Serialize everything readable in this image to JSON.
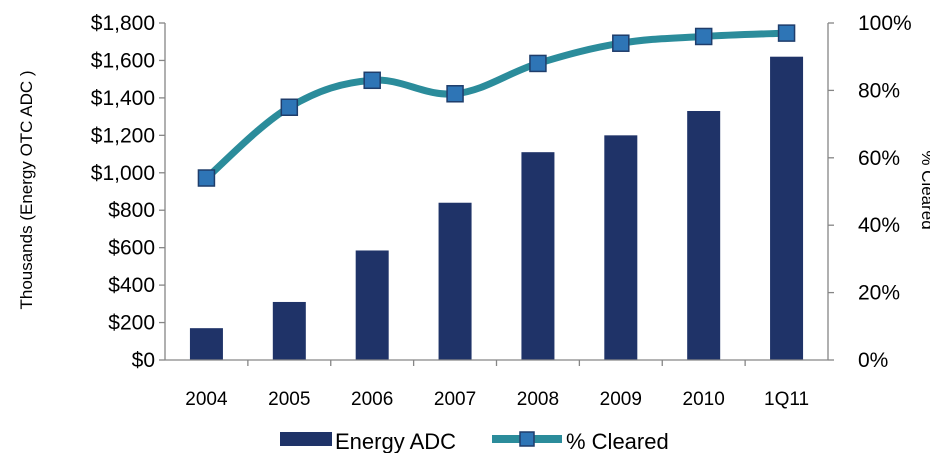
{
  "chart_data": {
    "type": "bar",
    "categories": [
      "2004",
      "2005",
      "2006",
      "2007",
      "2008",
      "2009",
      "2010",
      "1Q11"
    ],
    "series": [
      {
        "name": "Energy ADC",
        "type": "bar",
        "axis": "left",
        "color": "#1f3368",
        "values": [
          170,
          310,
          585,
          840,
          1110,
          1200,
          1330,
          1620
        ]
      },
      {
        "name": "% Cleared",
        "type": "line",
        "axis": "right",
        "color": "#2b8c9b",
        "marker_color": "#2e75b6",
        "values": [
          0.54,
          0.75,
          0.83,
          0.79,
          0.88,
          0.94,
          0.96,
          0.97
        ]
      }
    ],
    "ylabel": "Thousands (Energy OTC ADC )",
    "y2label": "% Cleared",
    "ylim": [
      0,
      1800
    ],
    "y2lim": [
      0,
      1
    ],
    "yticks": [
      "$0",
      "$200",
      "$400",
      "$600",
      "$800",
      "$1,000",
      "$1,200",
      "$1,400",
      "$1,600",
      "$1,800"
    ],
    "y2ticks": [
      "0%",
      "20%",
      "40%",
      "60%",
      "80%",
      "100%"
    ],
    "legend_position": "bottom",
    "grid": false
  }
}
